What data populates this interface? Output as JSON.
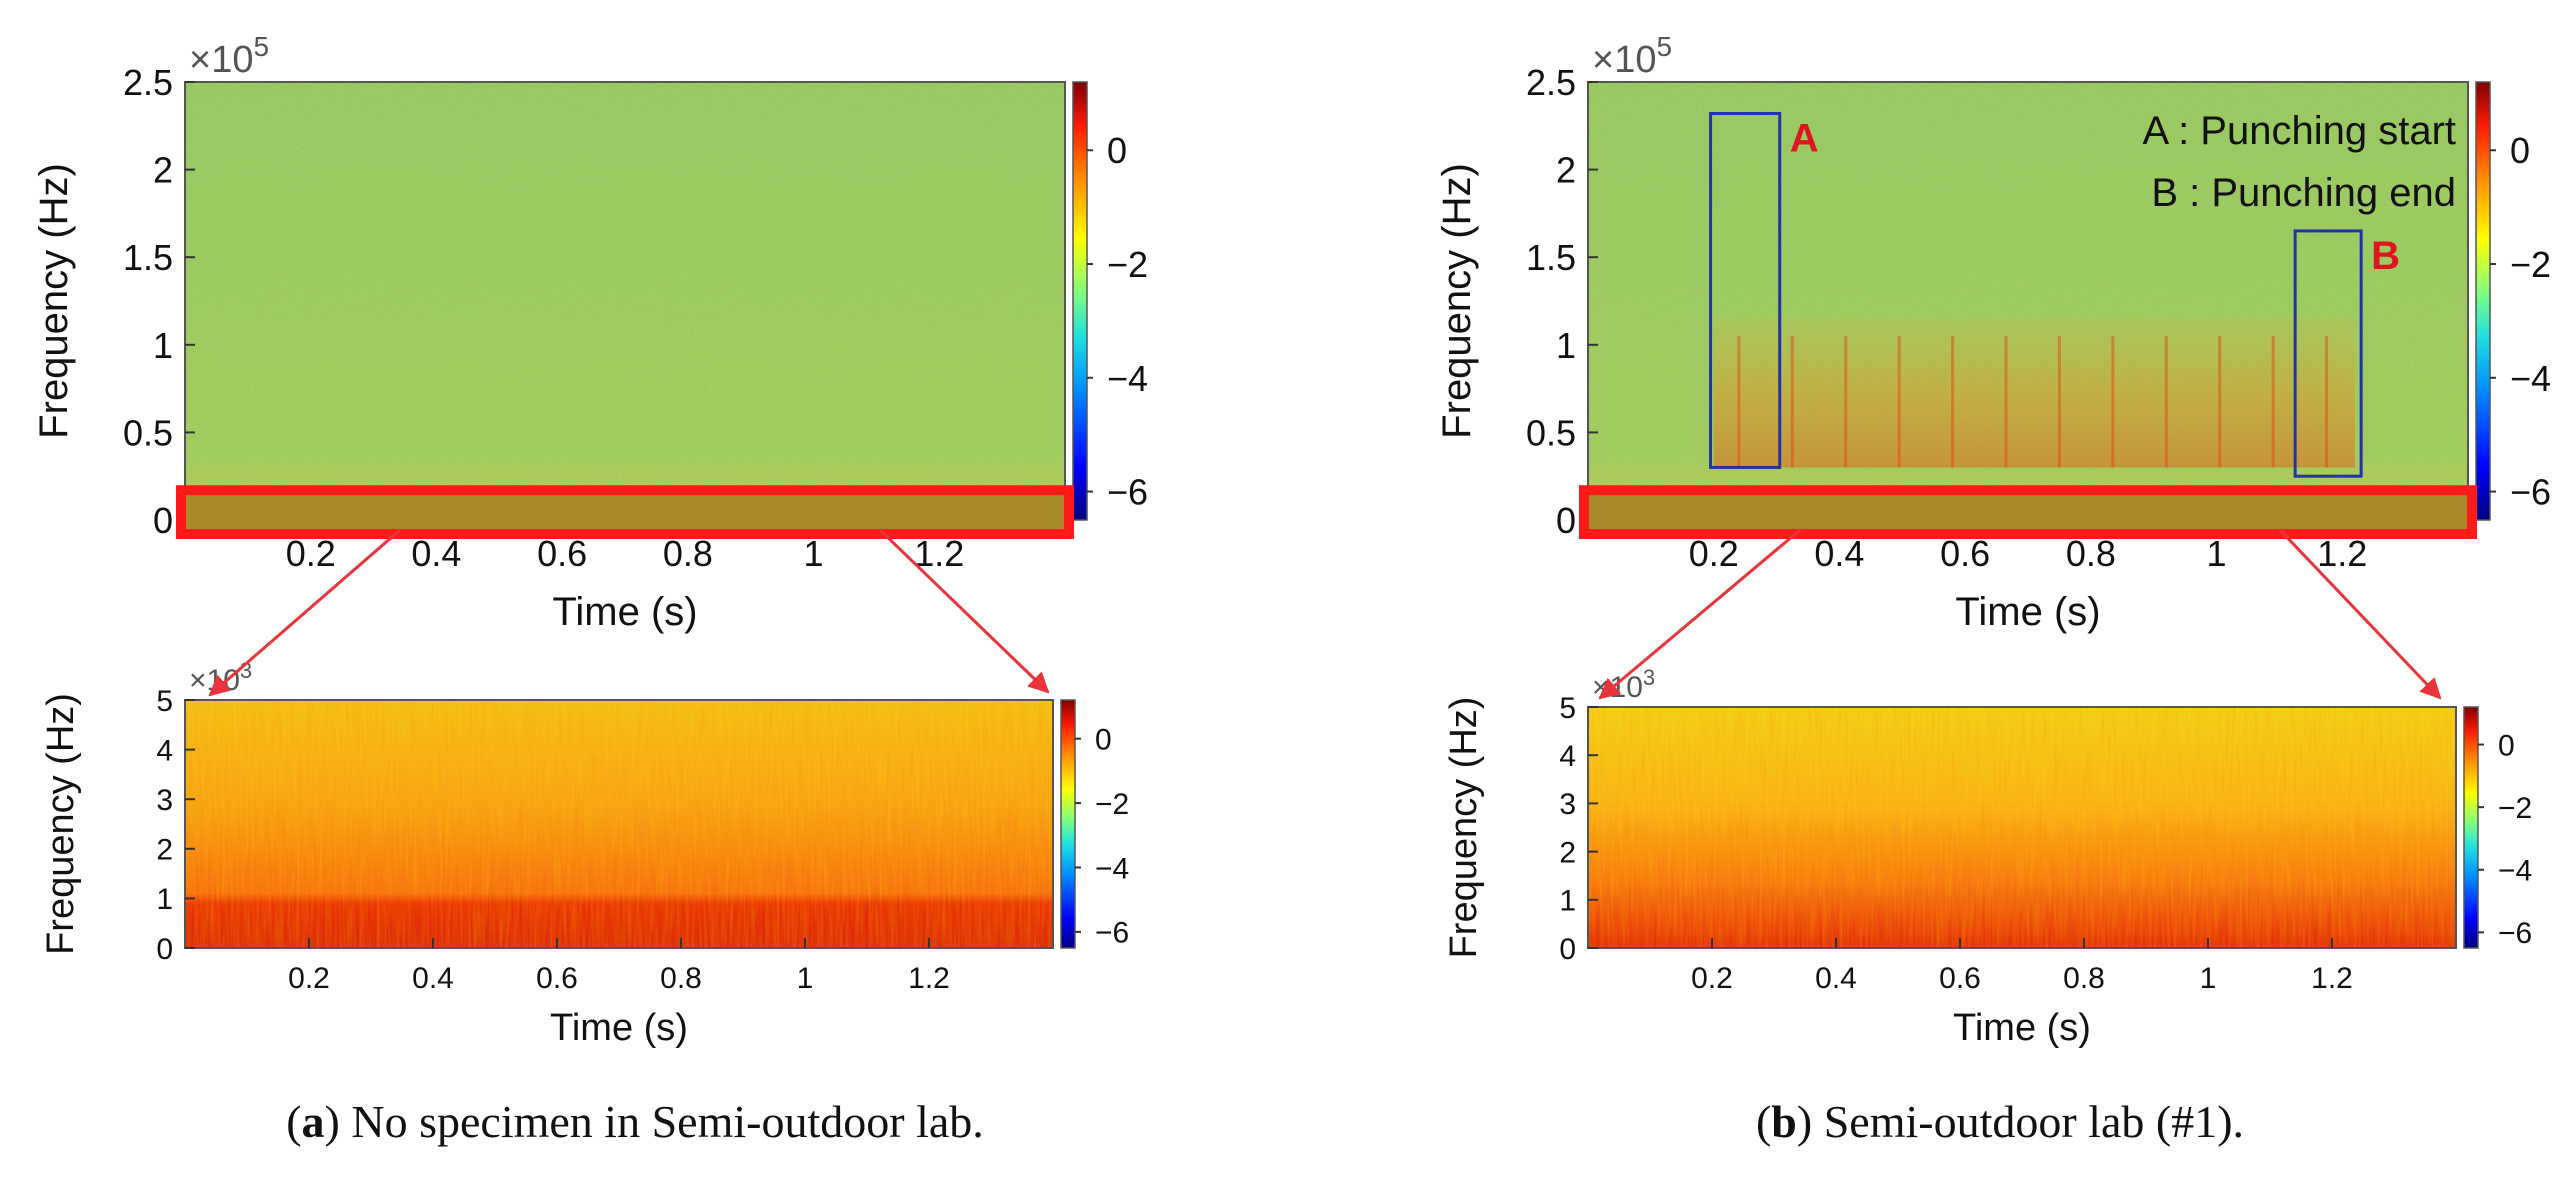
{
  "figure": {
    "captions": [
      {
        "id": "a",
        "letter": "a",
        "text": "No specimen in Semi-outdoor lab."
      },
      {
        "id": "b",
        "letter": "b",
        "text": "Semi-outdoor lab (#1)."
      }
    ]
  },
  "colors": {
    "zoom_box": "#ff1a1a",
    "event_box": "#2233aa",
    "event_label": "#e0141e",
    "arrow": "#e8343a"
  },
  "chart_data": [
    {
      "id": "a-top",
      "type": "heatmap",
      "title": "",
      "xlabel": "Time (s)",
      "ylabel": "Frequency (Hz)",
      "xlim": [
        0,
        1.4
      ],
      "ylim": [
        0,
        250000
      ],
      "x_ticks": [
        0.2,
        0.4,
        0.6,
        0.8,
        1,
        1.2
      ],
      "x_tick_labels": [
        "0.2",
        "0.4",
        "0.6",
        "0.8",
        "1",
        "1.2"
      ],
      "y_ticks": [
        0,
        0.5,
        1,
        1.5,
        2,
        2.5
      ],
      "y_tick_labels": [
        "0",
        "0.5",
        "1",
        "1.5",
        "2",
        "2.5"
      ],
      "y_multiplier": "×10",
      "y_exponent": "5",
      "colorbar": {
        "min": -6.5,
        "max": 1.2,
        "ticks": [
          0,
          -2,
          -4,
          -6
        ],
        "tick_labels": [
          "0",
          "−2",
          "−4",
          "−6"
        ]
      },
      "highlight": {
        "freq_range": [
          0,
          5000
        ],
        "time_range": [
          0,
          1.4
        ]
      },
      "annotations": []
    },
    {
      "id": "b-top",
      "type": "heatmap",
      "title": "",
      "xlabel": "Time (s)",
      "ylabel": "Frequency (Hz)",
      "xlim": [
        0,
        1.4
      ],
      "ylim": [
        0,
        250000
      ],
      "x_ticks": [
        0.2,
        0.4,
        0.6,
        0.8,
        1,
        1.2
      ],
      "x_tick_labels": [
        "0.2",
        "0.4",
        "0.6",
        "0.8",
        "1",
        "1.2"
      ],
      "y_ticks": [
        0,
        0.5,
        1,
        1.5,
        2,
        2.5
      ],
      "y_tick_labels": [
        "0",
        "0.5",
        "1",
        "1.5",
        "2",
        "2.5"
      ],
      "y_multiplier": "×10",
      "y_exponent": "5",
      "colorbar": {
        "min": -6.5,
        "max": 1.2,
        "ticks": [
          0,
          -2,
          -4,
          -6
        ],
        "tick_labels": [
          "0",
          "−2",
          "−4",
          "−6"
        ]
      },
      "highlight": {
        "freq_range": [
          0,
          5000
        ],
        "time_range": [
          0,
          1.4
        ]
      },
      "annotations": [
        {
          "label": "A",
          "time_range": [
            0.195,
            0.305
          ],
          "freq_range": [
            30000,
            232000
          ]
        },
        {
          "label": "B",
          "time_range": [
            1.125,
            1.23
          ],
          "freq_range": [
            25000,
            165000
          ]
        }
      ],
      "legend_lines": [
        "A  :  Punching start",
        "B  :  Punching end"
      ]
    },
    {
      "id": "a-bottom",
      "type": "heatmap",
      "title": "",
      "xlabel": "Time (s)",
      "ylabel": "Frequency (Hz)",
      "xlim": [
        0,
        1.4
      ],
      "ylim": [
        0,
        5000
      ],
      "x_ticks": [
        0.2,
        0.4,
        0.6,
        0.8,
        1,
        1.2
      ],
      "x_tick_labels": [
        "0.2",
        "0.4",
        "0.6",
        "0.8",
        "1",
        "1.2"
      ],
      "y_ticks": [
        0,
        1,
        2,
        3,
        4,
        5
      ],
      "y_tick_labels": [
        "0",
        "1",
        "2",
        "3",
        "4",
        "5"
      ],
      "y_multiplier": "×10",
      "y_exponent": "3",
      "colorbar": {
        "min": -6.5,
        "max": 1.2,
        "ticks": [
          0,
          -2,
          -4,
          -6
        ],
        "tick_labels": [
          "0",
          "−2",
          "−4",
          "−6"
        ]
      },
      "annotations": []
    },
    {
      "id": "b-bottom",
      "type": "heatmap",
      "title": "",
      "xlabel": "Time (s)",
      "ylabel": "Frequency (Hz)",
      "xlim": [
        0,
        1.4
      ],
      "ylim": [
        0,
        5000
      ],
      "x_ticks": [
        0.2,
        0.4,
        0.6,
        0.8,
        1,
        1.2
      ],
      "x_tick_labels": [
        "0.2",
        "0.4",
        "0.6",
        "0.8",
        "1",
        "1.2"
      ],
      "y_ticks": [
        0,
        1,
        2,
        3,
        4,
        5
      ],
      "y_tick_labels": [
        "0",
        "1",
        "2",
        "3",
        "4",
        "5"
      ],
      "y_multiplier": "×10",
      "y_exponent": "3",
      "colorbar": {
        "min": -6.5,
        "max": 1.2,
        "ticks": [
          0,
          -2,
          -4,
          -6
        ],
        "tick_labels": [
          "0",
          "−2",
          "−4",
          "−6"
        ]
      },
      "annotations": []
    }
  ]
}
